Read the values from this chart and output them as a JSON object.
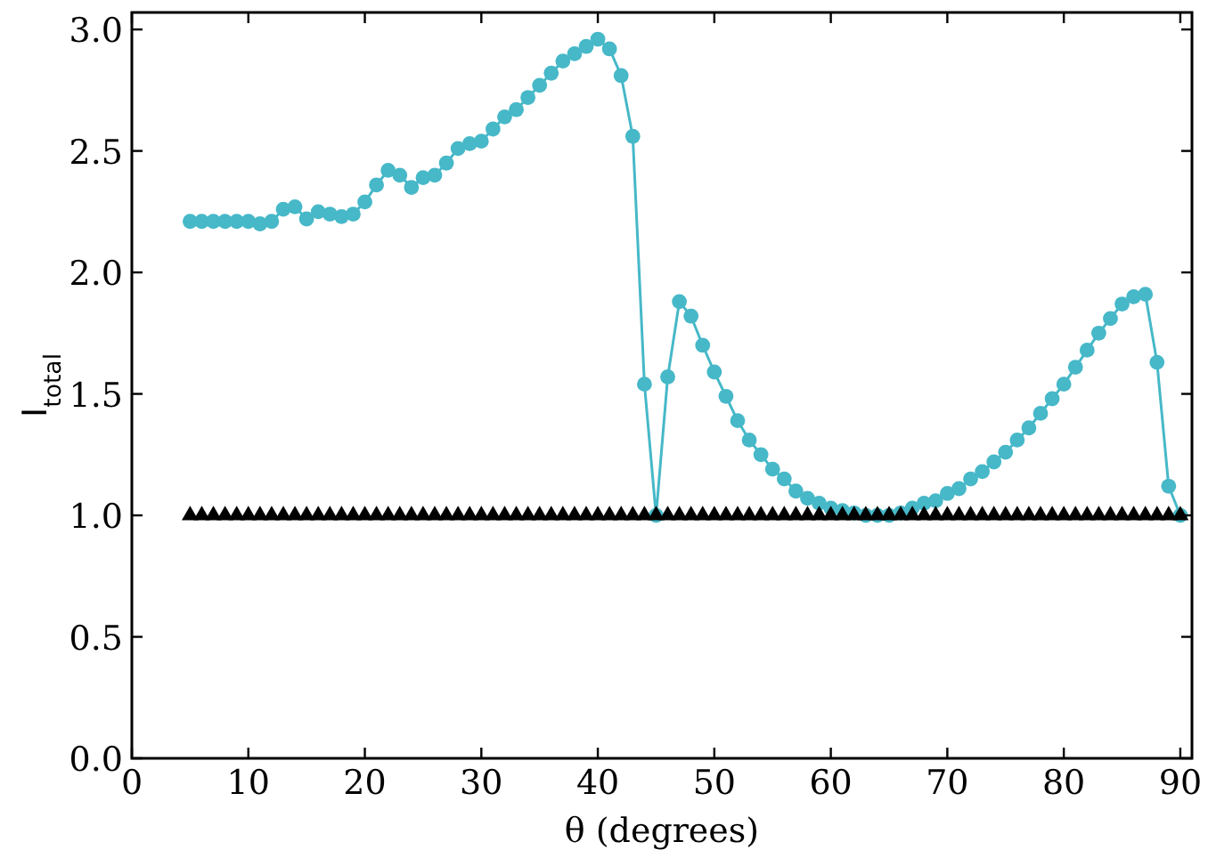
{
  "chart_data": {
    "type": "line",
    "xlabel": "θ (degrees)",
    "ylabel": "I$_{total}$",
    "x": [
      5,
      6,
      7,
      8,
      9,
      10,
      11,
      12,
      13,
      14,
      15,
      16,
      17,
      18,
      19,
      20,
      21,
      22,
      23,
      24,
      25,
      26,
      27,
      28,
      29,
      30,
      31,
      32,
      33,
      34,
      35,
      36,
      37,
      38,
      39,
      40,
      41,
      42,
      43,
      44,
      45,
      46,
      47,
      48,
      49,
      50,
      51,
      52,
      53,
      54,
      55,
      56,
      57,
      58,
      59,
      60,
      61,
      62,
      63,
      64,
      65,
      66,
      67,
      68,
      69,
      70,
      71,
      72,
      73,
      74,
      75,
      76,
      77,
      78,
      79,
      80,
      81,
      82,
      83,
      84,
      85,
      86,
      87,
      88,
      89,
      90
    ],
    "series": [
      {
        "marker": "circle",
        "color": "#46b8c8",
        "values": [
          2.21,
          2.21,
          2.21,
          2.21,
          2.21,
          2.21,
          2.2,
          2.21,
          2.26,
          2.27,
          2.22,
          2.25,
          2.24,
          2.23,
          2.24,
          2.29,
          2.36,
          2.42,
          2.4,
          2.35,
          2.39,
          2.4,
          2.45,
          2.51,
          2.53,
          2.54,
          2.59,
          2.64,
          2.67,
          2.72,
          2.77,
          2.82,
          2.87,
          2.9,
          2.93,
          2.96,
          2.92,
          2.81,
          2.56,
          1.54,
          1.0,
          1.57,
          1.88,
          1.82,
          1.7,
          1.59,
          1.49,
          1.39,
          1.31,
          1.25,
          1.19,
          1.15,
          1.1,
          1.07,
          1.05,
          1.03,
          1.02,
          1.01,
          1.0,
          1.0,
          1.0,
          1.01,
          1.03,
          1.05,
          1.06,
          1.09,
          1.11,
          1.15,
          1.18,
          1.22,
          1.26,
          1.31,
          1.36,
          1.42,
          1.48,
          1.54,
          1.61,
          1.68,
          1.75,
          1.81,
          1.87,
          1.9,
          1.91,
          1.63,
          1.12,
          1.0
        ]
      },
      {
        "type": "scatter",
        "marker": "triangle",
        "color": "#000000",
        "values": [
          1,
          1,
          1,
          1,
          1,
          1,
          1,
          1,
          1,
          1,
          1,
          1,
          1,
          1,
          1,
          1,
          1,
          1,
          1,
          1,
          1,
          1,
          1,
          1,
          1,
          1,
          1,
          1,
          1,
          1,
          1,
          1,
          1,
          1,
          1,
          1,
          1,
          1,
          1,
          1,
          1,
          1,
          1,
          1,
          1,
          1,
          1,
          1,
          1,
          1,
          1,
          1,
          1,
          1,
          1,
          1,
          1,
          1,
          1,
          1,
          1,
          1,
          1,
          1,
          1,
          1,
          1,
          1,
          1,
          1,
          1,
          1,
          1,
          1,
          1,
          1,
          1,
          1,
          1,
          1,
          1,
          1,
          1,
          1,
          1,
          1
        ]
      }
    ],
    "xlim": [
      0,
      91
    ],
    "xticks": [
      0,
      10,
      20,
      30,
      40,
      50,
      60,
      70,
      80,
      90
    ],
    "ylim": [
      0,
      3.07
    ],
    "yticks": [
      {
        "value": 0,
        "label": "0.0"
      },
      {
        "value": 0.5,
        "label": "0.5"
      },
      {
        "value": 1,
        "label": "1.0"
      },
      {
        "value": 1.5,
        "label": "1.5"
      },
      {
        "value": 2,
        "label": "2.0"
      },
      {
        "value": 2.5,
        "label": "2.5"
      },
      {
        "value": 3,
        "label": "3.0"
      }
    ]
  }
}
